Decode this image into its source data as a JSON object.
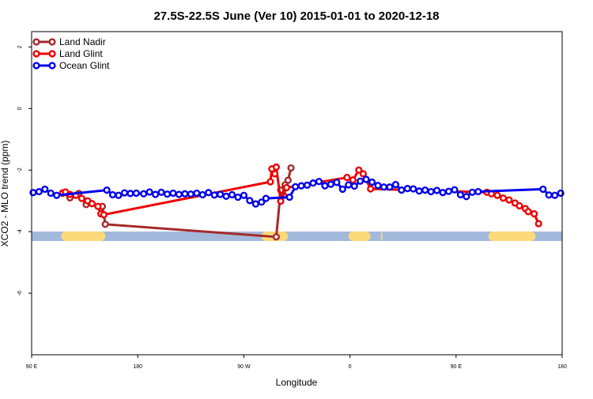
{
  "chart_data": {
    "type": "line",
    "title": "27.5S-22.5S June (Ver 10)   2015-01-01 to 2020-12-18",
    "xlabel": "Longitude",
    "ylabel": "XCO2 - MLO trend (ppm)",
    "xlim": [
      90,
      450
    ],
    "ylim": [
      -8,
      2.5
    ],
    "x_ticks": [
      {
        "value": 90,
        "label": "90 E"
      },
      {
        "value": 162,
        "label": "180"
      },
      {
        "value": 234,
        "label": "90 W"
      },
      {
        "value": 306,
        "label": "0"
      },
      {
        "value": 378,
        "label": "90 E"
      },
      {
        "value": 450,
        "label": "180"
      }
    ],
    "y_ticks": [
      {
        "value": 2,
        "label": "2"
      },
      {
        "value": 0,
        "label": "0"
      },
      {
        "value": -2,
        "label": "-2"
      },
      {
        "value": -4,
        "label": "-4"
      },
      {
        "value": -6,
        "label": "-6"
      }
    ],
    "grid": false,
    "legend_position": "top-left",
    "land_bar": {
      "y": -4.15,
      "ocean_color": "#a3b9db",
      "land_color": "#fcd97a",
      "land_segments": [
        [
          110,
          140
        ],
        [
          246,
          264
        ],
        [
          305,
          320
        ],
        [
          327,
          328
        ],
        [
          400,
          432
        ]
      ]
    },
    "series": [
      {
        "name": "Land Nadir",
        "color": "#a52a2a",
        "x": [
          111,
          116,
          122,
          127,
          138,
          140,
          256,
          259,
          261,
          262,
          264,
          266
        ],
        "y": [
          -2.74,
          -2.9,
          -2.76,
          -3.12,
          -3.18,
          -3.76,
          -4.17,
          -2.65,
          -2.82,
          -2.48,
          -2.33,
          -1.93
        ]
      },
      {
        "name": "Land Glint",
        "color": "#ee0000",
        "x": [
          111,
          113,
          116,
          120,
          124,
          128,
          131,
          135,
          137,
          139,
          252,
          253,
          255,
          256,
          259,
          263,
          304,
          308,
          312,
          315,
          320,
          399,
          402,
          406,
          410,
          414,
          418,
          421,
          425,
          427,
          431,
          434
        ],
        "y": [
          -2.75,
          -2.71,
          -2.79,
          -2.82,
          -2.92,
          -3.0,
          -3.09,
          -3.18,
          -3.42,
          -3.45,
          -2.38,
          -1.96,
          -2.12,
          -1.9,
          -3.01,
          -2.57,
          -2.24,
          -2.32,
          -2.0,
          -2.12,
          -2.61,
          -2.72,
          -2.77,
          -2.82,
          -2.91,
          -2.97,
          -3.07,
          -3.16,
          -3.25,
          -3.35,
          -3.42,
          -3.74
        ],
        "x_extra": [],
        "y_extra": []
      },
      {
        "name": "Ocean Glint",
        "color": "#0000ee",
        "x": [
          91,
          95,
          99,
          103,
          107,
          141,
          145,
          149,
          153,
          157,
          161,
          166,
          170,
          174,
          178,
          182,
          186,
          190,
          194,
          198,
          202,
          206,
          210,
          214,
          218,
          222,
          226,
          230,
          234,
          238,
          242,
          246,
          249,
          265,
          269,
          273,
          277,
          281,
          285,
          289,
          293,
          297,
          301,
          305,
          309,
          313,
          317,
          321,
          325,
          329,
          333,
          337,
          341,
          345,
          349,
          353,
          357,
          361,
          365,
          369,
          373,
          377,
          381,
          385,
          389,
          393,
          437,
          441,
          445,
          449
        ],
        "y": [
          -2.73,
          -2.7,
          -2.62,
          -2.75,
          -2.82,
          -2.65,
          -2.8,
          -2.82,
          -2.74,
          -2.76,
          -2.75,
          -2.77,
          -2.71,
          -2.79,
          -2.72,
          -2.78,
          -2.75,
          -2.79,
          -2.77,
          -2.78,
          -2.75,
          -2.8,
          -2.73,
          -2.81,
          -2.79,
          -2.85,
          -2.8,
          -2.88,
          -2.82,
          -2.99,
          -3.1,
          -3.04,
          -2.92,
          -2.88,
          -2.54,
          -2.51,
          -2.49,
          -2.42,
          -2.37,
          -2.51,
          -2.46,
          -2.4,
          -2.62,
          -2.48,
          -2.52,
          -2.36,
          -2.3,
          -2.39,
          -2.5,
          -2.55,
          -2.55,
          -2.47,
          -2.65,
          -2.6,
          -2.61,
          -2.68,
          -2.65,
          -2.7,
          -2.66,
          -2.73,
          -2.69,
          -2.64,
          -2.8,
          -2.86,
          -2.72,
          -2.7,
          -2.62,
          -2.81,
          -2.82,
          -2.75
        ]
      }
    ]
  }
}
